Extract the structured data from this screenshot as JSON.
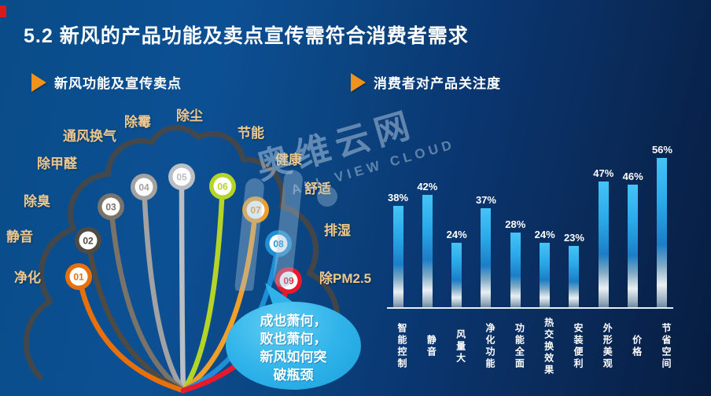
{
  "header": {
    "title": "5.2 新风的产品功能及卖点宣传需符合消费者需求"
  },
  "accent_colors": {
    "corner_red": "#d61b1b",
    "arrow_orange": "#f0921e",
    "bar_blue": "#2fb3ee",
    "label_tan": "#eec88c",
    "bubble_blue": "#2eb2e9"
  },
  "sections": {
    "left_label": "新风功能及宣传卖点",
    "right_label": "消费者对产品关注度"
  },
  "fan": {
    "items": [
      {
        "number": "01",
        "color": "#e8700a"
      },
      {
        "number": "02",
        "color": "#4f4a42"
      },
      {
        "number": "03",
        "color": "#7a7369"
      },
      {
        "number": "04",
        "color": "#a2a2a2"
      },
      {
        "number": "05",
        "color": "#b9bfc4"
      },
      {
        "number": "06",
        "color": "#b5d428"
      },
      {
        "number": "07",
        "color": "#f09f28"
      },
      {
        "number": "08",
        "color": "#1e8fd5"
      },
      {
        "number": "09",
        "color": "#e8192c"
      }
    ],
    "labels": [
      "净化",
      "静音",
      "除臭",
      "除甲醛",
      "通风换气",
      "除霉",
      "除尘",
      "节能",
      "健康",
      "舒适",
      "排湿",
      "除PM2.5"
    ],
    "cloud_outline_color": "#4c473f"
  },
  "bubble": {
    "lines": [
      "成也萧何，",
      "败也萧何，",
      "新风如何突",
      "破瓶颈"
    ]
  },
  "watermark": {
    "cn": "奥维云网",
    "en": "ALL VIEW CLOUD"
  },
  "chart_data": {
    "type": "bar",
    "title": "消费者对产品关注度",
    "categories": [
      "智能控制",
      "静音",
      "风量大",
      "净化功能",
      "功能全面",
      "热交换效果",
      "安装便利",
      "外形美观",
      "价格",
      "节省空间"
    ],
    "values": [
      38,
      42,
      24,
      37,
      28,
      24,
      23,
      47,
      46,
      56
    ],
    "unit": "%",
    "ylim": [
      0,
      60
    ],
    "grid": false,
    "legend": null,
    "bar_color": "#2fb3ee",
    "value_labels_shown": true
  }
}
